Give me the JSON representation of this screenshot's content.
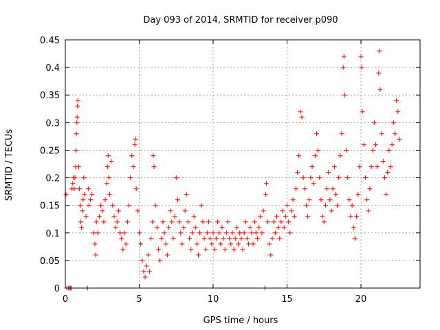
{
  "chart_data": {
    "type": "scatter",
    "title": "Day 093 of 2014, SRMTID for receiver p090",
    "xlabel": "GPS time / hours",
    "ylabel": "SRMTID / TECUs",
    "xlim": [
      0,
      24
    ],
    "ylim": [
      0,
      0.45
    ],
    "xticks": [
      0,
      5,
      10,
      15,
      20
    ],
    "xtick_labels": [
      "0",
      "5",
      "10",
      "15",
      "20"
    ],
    "yticks": [
      0,
      0.05,
      0.1,
      0.15,
      0.2,
      0.25,
      0.3,
      0.35,
      0.4,
      0.45
    ],
    "ytick_labels": [
      "0",
      "0.05",
      "0.1",
      "0.15",
      "0.2",
      "0.25",
      "0.3",
      "0.35",
      "0.4",
      "0.45"
    ],
    "grid": true,
    "marker": "+",
    "color": "#ff0000",
    "series": [
      {
        "name": "SRMTID",
        "points": [
          [
            0.05,
            0.17
          ],
          [
            0.1,
            0
          ],
          [
            0.2,
            0
          ],
          [
            0.3,
            0
          ],
          [
            0.35,
            0
          ],
          [
            0.4,
            0
          ],
          [
            0.45,
            0.18
          ],
          [
            0.5,
            0.19
          ],
          [
            0.55,
            0.2
          ],
          [
            0.6,
            0.18
          ],
          [
            0.65,
            0.2
          ],
          [
            0.7,
            0.22
          ],
          [
            0.72,
            0.25
          ],
          [
            0.75,
            0.28
          ],
          [
            0.78,
            0.3
          ],
          [
            0.8,
            0.31
          ],
          [
            0.82,
            0.33
          ],
          [
            0.85,
            0.34
          ],
          [
            0.9,
            0.22
          ],
          [
            0.95,
            0.18
          ],
          [
            1.0,
            0.15
          ],
          [
            1.05,
            0.12
          ],
          [
            1.1,
            0.11
          ],
          [
            1.15,
            0.14
          ],
          [
            1.2,
            0.16
          ],
          [
            1.25,
            0.2
          ],
          [
            1.3,
            0.17
          ],
          [
            1.4,
            0.13
          ],
          [
            1.5,
            0
          ],
          [
            1.55,
            0.18
          ],
          [
            1.6,
            0.15
          ],
          [
            1.7,
            0.16
          ],
          [
            1.8,
            0.17
          ],
          [
            1.9,
            0.1
          ],
          [
            2.0,
            0.08
          ],
          [
            2.05,
            0.06
          ],
          [
            2.1,
            0.12
          ],
          [
            2.2,
            0.1
          ],
          [
            2.3,
            0.13
          ],
          [
            2.4,
            0.15
          ],
          [
            2.5,
            0.14
          ],
          [
            2.6,
            0.12
          ],
          [
            2.7,
            0.16
          ],
          [
            2.8,
            0.19
          ],
          [
            2.85,
            0.22
          ],
          [
            2.9,
            0.24
          ],
          [
            2.95,
            0.2
          ],
          [
            3.0,
            0.17
          ],
          [
            3.1,
            0.23
          ],
          [
            3.2,
            0.15
          ],
          [
            3.3,
            0.13
          ],
          [
            3.4,
            0.11
          ],
          [
            3.5,
            0.12
          ],
          [
            3.6,
            0.14
          ],
          [
            3.7,
            0.1
          ],
          [
            3.8,
            0.09
          ],
          [
            3.9,
            0.07
          ],
          [
            4.0,
            0.1
          ],
          [
            4.1,
            0.08
          ],
          [
            4.2,
            0.12
          ],
          [
            4.3,
            0.15
          ],
          [
            4.4,
            0.2
          ],
          [
            4.5,
            0.24
          ],
          [
            4.6,
            0.22
          ],
          [
            4.7,
            0.26
          ],
          [
            4.75,
            0.27
          ],
          [
            4.8,
            0.18
          ],
          [
            4.9,
            0.14
          ],
          [
            5.0,
            0.1
          ],
          [
            5.1,
            0.08
          ],
          [
            5.2,
            0.05
          ],
          [
            5.3,
            0.03
          ],
          [
            5.4,
            0.02
          ],
          [
            5.5,
            0.04
          ],
          [
            5.6,
            0.06
          ],
          [
            5.7,
            0.03
          ],
          [
            5.8,
            0.09
          ],
          [
            5.9,
            0.12
          ],
          [
            5.95,
            0.24
          ],
          [
            6.0,
            0.22
          ],
          [
            6.1,
            0.15
          ],
          [
            6.2,
            0.11
          ],
          [
            6.3,
            0.07
          ],
          [
            6.4,
            0.05
          ],
          [
            6.5,
            0.09
          ],
          [
            6.6,
            0.12
          ],
          [
            6.7,
            0.1
          ],
          [
            6.8,
            0.08
          ],
          [
            6.9,
            0.06
          ],
          [
            7.0,
            0.11
          ],
          [
            7.1,
            0.14
          ],
          [
            7.2,
            0.12
          ],
          [
            7.3,
            0.09
          ],
          [
            7.4,
            0.13
          ],
          [
            7.5,
            0.2
          ],
          [
            7.6,
            0.16
          ],
          [
            7.7,
            0.12
          ],
          [
            7.8,
            0.1
          ],
          [
            7.9,
            0.08
          ],
          [
            8.0,
            0.11
          ],
          [
            8.1,
            0.14
          ],
          [
            8.2,
            0.17
          ],
          [
            8.3,
            0.12
          ],
          [
            8.4,
            0.09
          ],
          [
            8.5,
            0.07
          ],
          [
            8.6,
            0.1
          ],
          [
            8.7,
            0.13
          ],
          [
            8.8,
            0.11
          ],
          [
            8.9,
            0.08
          ],
          [
            9.0,
            0.06
          ],
          [
            9.1,
            0.1
          ],
          [
            9.2,
            0.15
          ],
          [
            9.3,
            0.12
          ],
          [
            9.4,
            0.09
          ],
          [
            9.5,
            0.07
          ],
          [
            9.6,
            0.1
          ],
          [
            9.7,
            0.12
          ],
          [
            9.8,
            0.09
          ],
          [
            9.9,
            0.08
          ],
          [
            10.0,
            0.1
          ],
          [
            10.1,
            0.07
          ],
          [
            10.2,
            0.09
          ],
          [
            10.3,
            0.12
          ],
          [
            10.4,
            0.1
          ],
          [
            10.5,
            0.08
          ],
          [
            10.6,
            0.11
          ],
          [
            10.7,
            0.09
          ],
          [
            10.8,
            0.07
          ],
          [
            10.9,
            0.1
          ],
          [
            11.0,
            0.12
          ],
          [
            11.1,
            0.09
          ],
          [
            11.2,
            0.08
          ],
          [
            11.3,
            0.1
          ],
          [
            11.4,
            0.07
          ],
          [
            11.5,
            0.09
          ],
          [
            11.6,
            0.11
          ],
          [
            11.7,
            0.08
          ],
          [
            11.8,
            0.1
          ],
          [
            11.9,
            0.09
          ],
          [
            12.0,
            0.07
          ],
          [
            12.1,
            0.1
          ],
          [
            12.2,
            0.12
          ],
          [
            12.3,
            0.09
          ],
          [
            12.4,
            0.08
          ],
          [
            12.5,
            0.11
          ],
          [
            12.6,
            0.1
          ],
          [
            12.7,
            0.08
          ],
          [
            12.8,
            0.12
          ],
          [
            12.9,
            0.1
          ],
          [
            13.0,
            0.09
          ],
          [
            13.1,
            0.11
          ],
          [
            13.2,
            0.13
          ],
          [
            13.3,
            0.1
          ],
          [
            13.4,
            0.14
          ],
          [
            13.5,
            0
          ],
          [
            13.55,
            0.17
          ],
          [
            13.6,
            0.19
          ],
          [
            13.7,
            0.12
          ],
          [
            13.8,
            0.08
          ],
          [
            13.9,
            0.06
          ],
          [
            14.0,
            0.09
          ],
          [
            14.1,
            0.12
          ],
          [
            14.2,
            0.1
          ],
          [
            14.3,
            0.13
          ],
          [
            14.4,
            0.11
          ],
          [
            14.5,
            0.09
          ],
          [
            14.6,
            0.12
          ],
          [
            14.7,
            0.14
          ],
          [
            14.8,
            0.11
          ],
          [
            14.9,
            0.13
          ],
          [
            15.0,
            0.15
          ],
          [
            15.1,
            0.12
          ],
          [
            15.2,
            0.1
          ],
          [
            15.3,
            0.14
          ],
          [
            15.4,
            0.16
          ],
          [
            15.5,
            0.13
          ],
          [
            15.6,
            0.18
          ],
          [
            15.7,
            0.21
          ],
          [
            15.8,
            0.24
          ],
          [
            15.9,
            0.32
          ],
          [
            16.0,
            0.31
          ],
          [
            16.1,
            0.2
          ],
          [
            16.2,
            0.18
          ],
          [
            16.3,
            0.15
          ],
          [
            16.4,
            0.13
          ],
          [
            16.5,
            0.16
          ],
          [
            16.6,
            0.2
          ],
          [
            16.7,
            0.22
          ],
          [
            16.8,
            0.19
          ],
          [
            16.9,
            0.24
          ],
          [
            17.0,
            0.28
          ],
          [
            17.1,
            0.25
          ],
          [
            17.2,
            0.2
          ],
          [
            17.3,
            0.16
          ],
          [
            17.4,
            0.13
          ],
          [
            17.5,
            0.12
          ],
          [
            17.6,
            0.15
          ],
          [
            17.7,
            0.18
          ],
          [
            17.8,
            0.21
          ],
          [
            17.9,
            0.16
          ],
          [
            18.0,
            0.14
          ],
          [
            18.1,
            0.18
          ],
          [
            18.2,
            0.22
          ],
          [
            18.3,
            0.17
          ],
          [
            18.4,
            0.15
          ],
          [
            18.5,
            0.2
          ],
          [
            18.6,
            0.24
          ],
          [
            18.7,
            0.28
          ],
          [
            18.8,
            0.4
          ],
          [
            18.85,
            0.42
          ],
          [
            18.9,
            0.35
          ],
          [
            19.0,
            0.25
          ],
          [
            19.1,
            0.2
          ],
          [
            19.2,
            0.16
          ],
          [
            19.3,
            0.13
          ],
          [
            19.4,
            0.15
          ],
          [
            19.5,
            0.11
          ],
          [
            19.6,
            0.09
          ],
          [
            19.7,
            0.13
          ],
          [
            19.8,
            0.17
          ],
          [
            19.9,
            0.22
          ],
          [
            20.0,
            0.42
          ],
          [
            20.05,
            0.4
          ],
          [
            20.1,
            0.32
          ],
          [
            20.2,
            0.26
          ],
          [
            20.3,
            0.2
          ],
          [
            20.4,
            0.16
          ],
          [
            20.5,
            0.14
          ],
          [
            20.6,
            0.18
          ],
          [
            20.7,
            0.22
          ],
          [
            20.8,
            0.25
          ],
          [
            20.9,
            0.3
          ],
          [
            21.0,
            0.26
          ],
          [
            21.1,
            0.22
          ],
          [
            21.2,
            0.39
          ],
          [
            21.25,
            0.43
          ],
          [
            21.3,
            0.36
          ],
          [
            21.4,
            0.28
          ],
          [
            21.5,
            0.23
          ],
          [
            21.6,
            0.2
          ],
          [
            21.7,
            0.17
          ],
          [
            21.8,
            0.21
          ],
          [
            21.9,
            0.25
          ],
          [
            22.0,
            0.22
          ],
          [
            22.1,
            0.26
          ],
          [
            22.2,
            0.3
          ],
          [
            22.3,
            0.28
          ],
          [
            22.4,
            0.34
          ],
          [
            22.5,
            0.32
          ],
          [
            22.6,
            0.27
          ]
        ]
      }
    ]
  }
}
